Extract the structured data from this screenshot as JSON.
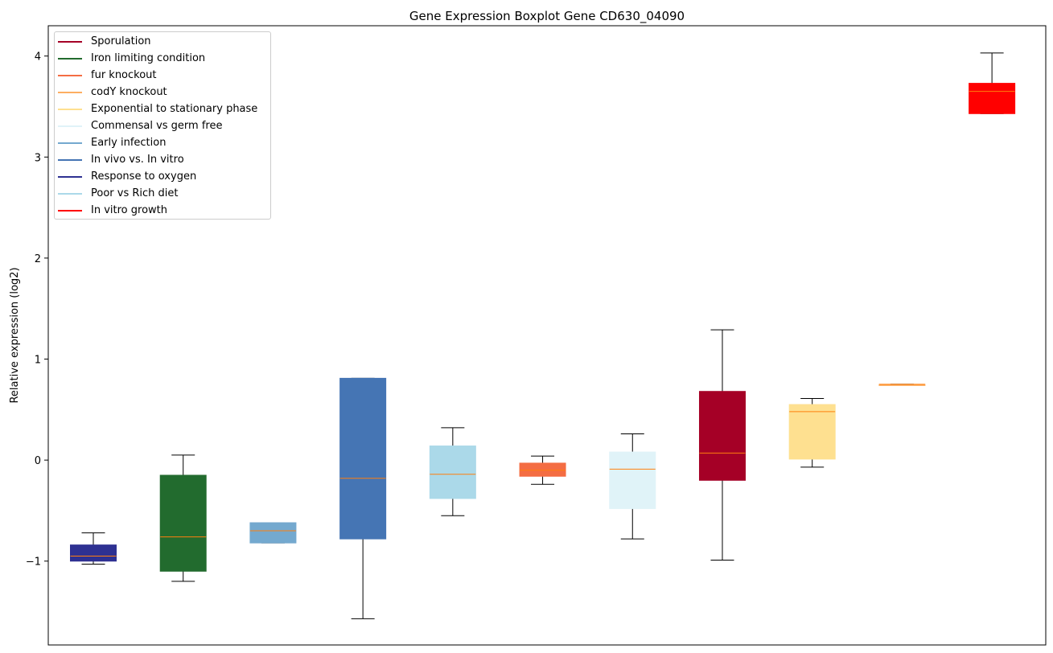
{
  "chart_data": {
    "type": "boxplot",
    "title": "Gene Expression Boxplot Gene CD630_04090",
    "xlabel": "",
    "ylabel": "Relative expression (log2)",
    "ylim": [
      -1.83,
      4.3
    ],
    "yticks": [
      -1,
      0,
      1,
      2,
      3,
      4
    ],
    "ytick_labels": [
      "−1",
      "0",
      "1",
      "2",
      "3",
      "4"
    ],
    "legend_position": "top-left",
    "median_color": "#ff7f0e",
    "series": [
      {
        "name": "Response to oxygen",
        "color": "#2e3192",
        "whisker_low": -1.03,
        "q1": -1.0,
        "median": -0.95,
        "q3": -0.84,
        "whisker_high": -0.72
      },
      {
        "name": "Iron limiting condition",
        "color": "#226b2e",
        "whisker_low": -1.2,
        "q1": -1.1,
        "median": -0.76,
        "q3": -0.15,
        "whisker_high": 0.05
      },
      {
        "name": "Early infection",
        "color": "#74a9cf",
        "whisker_low": -0.82,
        "q1": -0.82,
        "median": -0.7,
        "q3": -0.62,
        "whisker_high": -0.62
      },
      {
        "name": "In vivo vs. In vitro",
        "color": "#4575b4",
        "whisker_low": -1.57,
        "q1": -0.78,
        "median": -0.18,
        "q3": 0.81,
        "whisker_high": 0.81
      },
      {
        "name": "Poor vs Rich diet",
        "color": "#abd9e9",
        "whisker_low": -0.55,
        "q1": -0.38,
        "median": -0.14,
        "q3": 0.14,
        "whisker_high": 0.32
      },
      {
        "name": "fur knockout",
        "color": "#f46d43",
        "whisker_low": -0.24,
        "q1": -0.16,
        "median": -0.1,
        "q3": -0.03,
        "whisker_high": 0.04
      },
      {
        "name": "Commensal vs germ free",
        "color": "#e0f3f8",
        "whisker_low": -0.78,
        "q1": -0.48,
        "median": -0.09,
        "q3": 0.08,
        "whisker_high": 0.26
      },
      {
        "name": "Sporulation",
        "color": "#a50026",
        "whisker_low": -0.99,
        "q1": -0.2,
        "median": 0.07,
        "q3": 0.68,
        "whisker_high": 1.29
      },
      {
        "name": "Exponential to stationary phase",
        "color": "#fee090",
        "whisker_low": -0.07,
        "q1": 0.01,
        "median": 0.48,
        "q3": 0.55,
        "whisker_high": 0.61
      },
      {
        "name": "codY knockout",
        "color": "#fdae61",
        "whisker_low": 0.75,
        "q1": 0.75,
        "median": 0.75,
        "q3": 0.75,
        "whisker_high": 0.75
      },
      {
        "name": "In vitro growth",
        "color": "#ff0000",
        "whisker_low": 3.43,
        "q1": 3.43,
        "median": 3.65,
        "q3": 3.73,
        "whisker_high": 4.03
      }
    ],
    "legend": [
      {
        "label": "Sporulation",
        "color": "#a50026"
      },
      {
        "label": "Iron limiting condition",
        "color": "#226b2e"
      },
      {
        "label": "fur knockout",
        "color": "#f46d43"
      },
      {
        "label": "codY knockout",
        "color": "#fdae61"
      },
      {
        "label": "Exponential to stationary phase",
        "color": "#fee090"
      },
      {
        "label": "Commensal vs germ free",
        "color": "#e0f3f8"
      },
      {
        "label": "Early infection",
        "color": "#74a9cf"
      },
      {
        "label": "In vivo vs. In vitro",
        "color": "#4575b4"
      },
      {
        "label": "Response to oxygen",
        "color": "#2e3192"
      },
      {
        "label": "Poor vs Rich diet",
        "color": "#abd9e9"
      },
      {
        "label": "In vitro growth",
        "color": "#ff0000"
      }
    ]
  }
}
